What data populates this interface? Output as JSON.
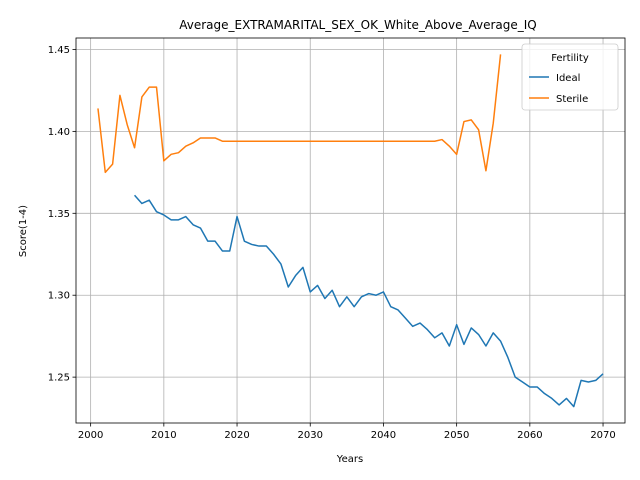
{
  "chart_data": {
    "type": "line",
    "title": "Average_EXTRAMARITAL_SEX_OK_White_Above_Average_IQ",
    "xlabel": "Years",
    "ylabel": "Score(1-4)",
    "xlim": [
      1998,
      2073
    ],
    "ylim": [
      1.222,
      1.457
    ],
    "xticks": [
      2000,
      2010,
      2020,
      2030,
      2040,
      2050,
      2060,
      2070
    ],
    "yticks": [
      1.25,
      1.3,
      1.35,
      1.4,
      1.45
    ],
    "ytick_labels": [
      "1.25",
      "1.30",
      "1.35",
      "1.40",
      "1.45"
    ],
    "grid": true,
    "legend": {
      "title": "Fertility",
      "placement": "upper right"
    },
    "series": [
      {
        "name": "Ideal",
        "color": "#1f77b4",
        "x": [
          2006,
          2007,
          2008,
          2009,
          2010,
          2011,
          2012,
          2013,
          2014,
          2015,
          2016,
          2017,
          2018,
          2019,
          2020,
          2021,
          2022,
          2023,
          2024,
          2025,
          2026,
          2027,
          2028,
          2029,
          2030,
          2031,
          2032,
          2033,
          2034,
          2035,
          2036,
          2037,
          2038,
          2039,
          2040,
          2041,
          2042,
          2043,
          2044,
          2045,
          2046,
          2047,
          2048,
          2049,
          2050,
          2051,
          2052,
          2053,
          2054,
          2055,
          2056,
          2057,
          2058,
          2059,
          2060,
          2061,
          2062,
          2063,
          2064,
          2065,
          2066,
          2067,
          2068,
          2069,
          2070
        ],
        "y": [
          1.361,
          1.356,
          1.358,
          1.351,
          1.349,
          1.346,
          1.346,
          1.348,
          1.343,
          1.341,
          1.333,
          1.333,
          1.327,
          1.327,
          1.348,
          1.333,
          1.331,
          1.33,
          1.33,
          1.325,
          1.319,
          1.305,
          1.312,
          1.317,
          1.302,
          1.306,
          1.298,
          1.303,
          1.293,
          1.299,
          1.293,
          1.299,
          1.301,
          1.3,
          1.302,
          1.293,
          1.291,
          1.286,
          1.281,
          1.283,
          1.279,
          1.274,
          1.277,
          1.269,
          1.282,
          1.27,
          1.28,
          1.276,
          1.269,
          1.277,
          1.272,
          1.262,
          1.25,
          1.247,
          1.244,
          1.244,
          1.24,
          1.237,
          1.233,
          1.237,
          1.232,
          1.248,
          1.247,
          1.248,
          1.252
        ]
      },
      {
        "name": "Sterile",
        "color": "#ff7f0e",
        "x": [
          2001,
          2002,
          2003,
          2004,
          2005,
          2006,
          2007,
          2008,
          2009,
          2010,
          2011,
          2012,
          2013,
          2014,
          2015,
          2016,
          2017,
          2018,
          2019,
          2020,
          2025,
          2030,
          2035,
          2040,
          2045,
          2047,
          2048,
          2049,
          2050,
          2051,
          2052,
          2053,
          2054,
          2055,
          2056
        ],
        "y": [
          1.414,
          1.375,
          1.38,
          1.422,
          1.404,
          1.39,
          1.421,
          1.427,
          1.427,
          1.382,
          1.386,
          1.387,
          1.391,
          1.393,
          1.396,
          1.396,
          1.396,
          1.394,
          1.394,
          1.394,
          1.394,
          1.394,
          1.394,
          1.394,
          1.394,
          1.394,
          1.395,
          1.391,
          1.386,
          1.406,
          1.407,
          1.401,
          1.376,
          1.405,
          1.447
        ]
      }
    ]
  }
}
